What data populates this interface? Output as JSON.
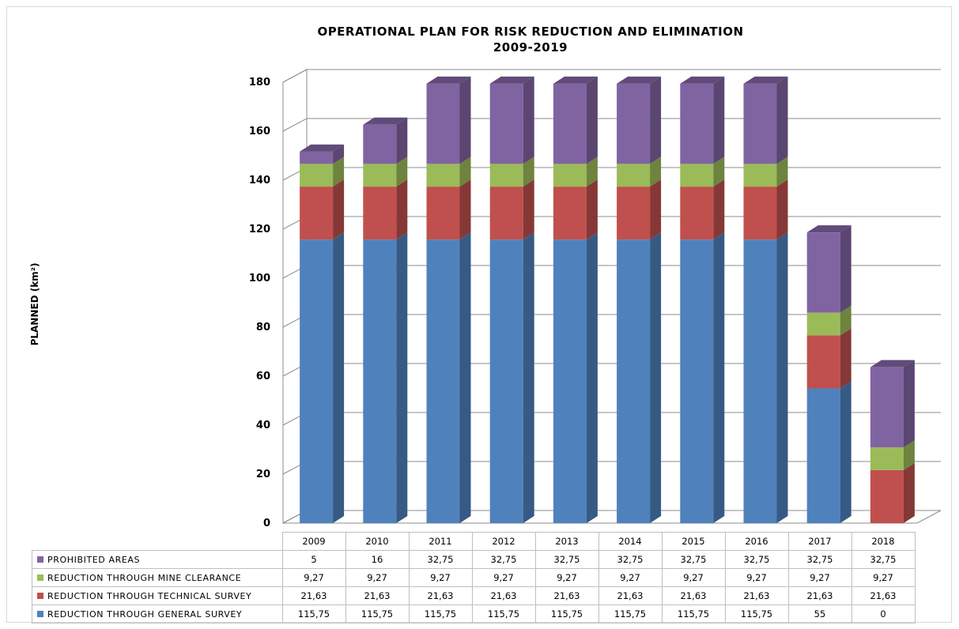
{
  "chart_data": {
    "type": "bar",
    "stacked": true,
    "three_d": true,
    "title": "OPERATIONAL PLAN FOR RISK REDUCTION AND ELIMINATION",
    "subtitle": "2009-2019",
    "ylabel": "PLANNED (km²)",
    "xlabel": "",
    "ylim": [
      0,
      180
    ],
    "yticks": [
      0,
      20,
      40,
      60,
      80,
      100,
      120,
      140,
      160,
      180
    ],
    "grid": true,
    "legend": "data-table-bottom",
    "categories": [
      "2009",
      "2010",
      "2011",
      "2012",
      "2013",
      "2014",
      "2015",
      "2016",
      "2017",
      "2018"
    ],
    "series": [
      {
        "name": "REDUCTION THROUGH GENERAL SURVEY",
        "color": "#4f81bd",
        "values": [
          115.75,
          115.75,
          115.75,
          115.75,
          115.75,
          115.75,
          115.75,
          115.75,
          55,
          0
        ],
        "labels": [
          "115,75",
          "115,75",
          "115,75",
          "115,75",
          "115,75",
          "115,75",
          "115,75",
          "115,75",
          "55",
          "0"
        ]
      },
      {
        "name": "REDUCTION THROUGH TECHNICAL SURVEY",
        "color": "#c0504d",
        "values": [
          21.63,
          21.63,
          21.63,
          21.63,
          21.63,
          21.63,
          21.63,
          21.63,
          21.63,
          21.63
        ],
        "labels": [
          "21,63",
          "21,63",
          "21,63",
          "21,63",
          "21,63",
          "21,63",
          "21,63",
          "21,63",
          "21,63",
          "21,63"
        ]
      },
      {
        "name": "REDUCTION THROUGH MINE CLEARANCE",
        "color": "#9bbb59",
        "values": [
          9.27,
          9.27,
          9.27,
          9.27,
          9.27,
          9.27,
          9.27,
          9.27,
          9.27,
          9.27
        ],
        "labels": [
          "9,27",
          "9,27",
          "9,27",
          "9,27",
          "9,27",
          "9,27",
          "9,27",
          "9,27",
          "9,27",
          "9,27"
        ]
      },
      {
        "name": "PROHIBITED AREAS",
        "color": "#8064a2",
        "values": [
          5,
          16,
          32.75,
          32.75,
          32.75,
          32.75,
          32.75,
          32.75,
          32.75,
          32.75
        ],
        "labels": [
          "5",
          "16",
          "32,75",
          "32,75",
          "32,75",
          "32,75",
          "32,75",
          "32,75",
          "32,75",
          "32,75"
        ]
      }
    ]
  }
}
